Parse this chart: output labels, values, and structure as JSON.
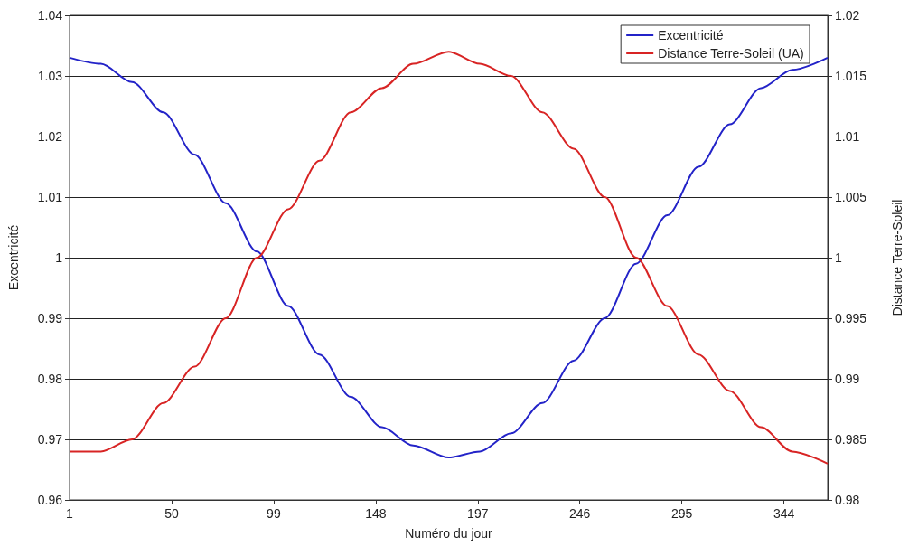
{
  "chart_data": {
    "type": "line",
    "xlabel": "Numéro du jour",
    "ylabel": "Excentricité",
    "y2label": "Distance Terre-Soleil",
    "x": [
      1,
      16,
      31,
      46,
      61,
      76,
      91,
      106,
      121,
      136,
      151,
      166,
      183,
      198,
      213,
      228,
      243,
      258,
      273,
      288,
      303,
      318,
      333,
      348,
      365
    ],
    "series": [
      {
        "name": "Excentricité",
        "color": "#2323c8",
        "values": [
          1.033,
          1.032,
          1.029,
          1.024,
          1.017,
          1.009,
          1.001,
          0.992,
          0.984,
          0.977,
          0.972,
          0.969,
          0.967,
          0.968,
          0.971,
          0.976,
          0.983,
          0.99,
          0.999,
          1.007,
          1.015,
          1.022,
          1.028,
          1.031,
          1.033
        ]
      },
      {
        "name": "Distance Terre-Soleil (UA)",
        "color": "#d82424",
        "axis": "y2",
        "values": [
          0.984,
          0.984,
          0.985,
          0.988,
          0.991,
          0.995,
          1.0,
          1.004,
          1.008,
          1.012,
          1.014,
          1.016,
          1.017,
          1.016,
          1.015,
          1.012,
          1.009,
          1.005,
          1.0,
          0.996,
          0.992,
          0.989,
          0.986,
          0.984,
          0.983
        ]
      }
    ],
    "xlim": [
      1,
      365
    ],
    "xticks": [
      1,
      50,
      99,
      148,
      197,
      246,
      295,
      344
    ],
    "ylim": [
      0.96,
      1.04
    ],
    "yticks": [
      0.96,
      0.97,
      0.98,
      0.99,
      1,
      1.01,
      1.02,
      1.03,
      1.04
    ],
    "y2lim": [
      0.98,
      1.02
    ],
    "y2ticks": [
      0.98,
      0.985,
      0.99,
      0.995,
      1,
      1.005,
      1.01,
      1.015,
      1.02
    ],
    "grid": "y",
    "legend": "top right",
    "marker": "none",
    "line_style": "solid"
  }
}
